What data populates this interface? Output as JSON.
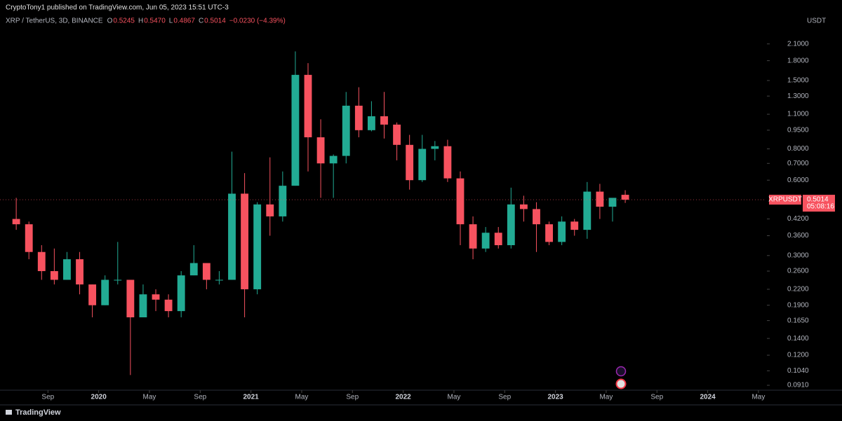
{
  "header": {
    "published": "CryptoTony1 published on TradingView.com, Jun 05, 2023 15:51 UTC-3",
    "ohlc": [
      {
        "key": "O",
        "value": "0.5245"
      },
      {
        "key": "H",
        "value": "0.5470"
      },
      {
        "key": "L",
        "value": "0.4867"
      },
      {
        "key": "C",
        "value": "0.5014"
      }
    ],
    "change": "−0.0230 (−4.39%)"
  },
  "footer": {
    "brand": "TradingView"
  },
  "chart_data": {
    "type": "candlestick",
    "title": "XRP / TetherUS, 3D, BINANCE",
    "currency": "USDT",
    "symbol": "XRPUSDT",
    "countdown": "05:08:16",
    "log_scale": true,
    "up_color": "#22ab94",
    "down_color": "#f7525f",
    "x": [
      "2019-06",
      "2019-07",
      "2019-08",
      "2019-09",
      "2019-10",
      "2019-11",
      "2019-12",
      "2020-01",
      "2020-02",
      "2020-03",
      "2020-04",
      "2020-05",
      "2020-06",
      "2020-07",
      "2020-08",
      "2020-09",
      "2020-10",
      "2020-11",
      "2020-12",
      "2021-01",
      "2021-02",
      "2021-03",
      "2021-04",
      "2021-05",
      "2021-06",
      "2021-07",
      "2021-08",
      "2021-09",
      "2021-10",
      "2021-11",
      "2021-12",
      "2022-01",
      "2022-02",
      "2022-03",
      "2022-04",
      "2022-05",
      "2022-06",
      "2022-07",
      "2022-08",
      "2022-09",
      "2022-10",
      "2022-11",
      "2022-12",
      "2023-01",
      "2023-02",
      "2023-03",
      "2023-04",
      "2023-05",
      "2023-06"
    ],
    "open": [
      0.42,
      0.4,
      0.31,
      0.26,
      0.24,
      0.29,
      0.23,
      0.19,
      0.24,
      0.24,
      0.17,
      0.21,
      0.2,
      0.18,
      0.25,
      0.28,
      0.24,
      0.24,
      0.53,
      0.22,
      0.48,
      0.43,
      0.57,
      1.58,
      0.89,
      0.7,
      0.75,
      1.19,
      0.95,
      1.08,
      1.0,
      0.83,
      0.6,
      0.8,
      0.82,
      0.61,
      0.4,
      0.32,
      0.37,
      0.33,
      0.48,
      0.46,
      0.4,
      0.34,
      0.41,
      0.38,
      0.54,
      0.47,
      0.5245
    ],
    "high": [
      0.51,
      0.41,
      0.33,
      0.32,
      0.31,
      0.31,
      0.23,
      0.25,
      0.34,
      0.24,
      0.23,
      0.22,
      0.21,
      0.26,
      0.33,
      0.28,
      0.26,
      0.78,
      0.64,
      0.49,
      0.74,
      0.65,
      1.96,
      1.76,
      1.05,
      0.76,
      1.35,
      1.41,
      1.24,
      1.35,
      1.02,
      0.91,
      0.91,
      0.86,
      0.87,
      0.65,
      0.43,
      0.39,
      0.39,
      0.56,
      0.52,
      0.49,
      0.41,
      0.43,
      0.42,
      0.59,
      0.58,
      0.49,
      0.547
    ],
    "low": [
      0.38,
      0.29,
      0.24,
      0.23,
      0.24,
      0.21,
      0.17,
      0.19,
      0.23,
      0.1,
      0.17,
      0.18,
      0.17,
      0.17,
      0.25,
      0.22,
      0.23,
      0.24,
      0.17,
      0.21,
      0.36,
      0.41,
      0.57,
      0.65,
      0.51,
      0.51,
      0.7,
      0.89,
      0.94,
      0.88,
      0.72,
      0.55,
      0.59,
      0.72,
      0.59,
      0.33,
      0.29,
      0.31,
      0.32,
      0.32,
      0.41,
      0.31,
      0.33,
      0.33,
      0.36,
      0.35,
      0.42,
      0.41,
      0.4867
    ],
    "close": [
      0.4,
      0.31,
      0.26,
      0.24,
      0.29,
      0.23,
      0.19,
      0.24,
      0.24,
      0.17,
      0.21,
      0.2,
      0.18,
      0.25,
      0.28,
      0.24,
      0.24,
      0.53,
      0.22,
      0.48,
      0.43,
      0.57,
      1.58,
      0.89,
      0.7,
      0.75,
      1.19,
      0.95,
      1.08,
      1.0,
      0.83,
      0.6,
      0.8,
      0.82,
      0.61,
      0.4,
      0.32,
      0.37,
      0.33,
      0.48,
      0.46,
      0.4,
      0.34,
      0.41,
      0.38,
      0.54,
      0.47,
      0.51,
      0.5014
    ],
    "xlim": [
      "2019-05",
      "2024-06"
    ],
    "xticks": [
      {
        "value": "2019-09",
        "label": "Sep"
      },
      {
        "value": "2020-01",
        "label": "2020"
      },
      {
        "value": "2020-05",
        "label": "May"
      },
      {
        "value": "2020-09",
        "label": "Sep"
      },
      {
        "value": "2021-01",
        "label": "2021"
      },
      {
        "value": "2021-05",
        "label": "May"
      },
      {
        "value": "2021-09",
        "label": "Sep"
      },
      {
        "value": "2022-01",
        "label": "2022"
      },
      {
        "value": "2022-05",
        "label": "May"
      },
      {
        "value": "2022-09",
        "label": "Sep"
      },
      {
        "value": "2023-01",
        "label": "2023"
      },
      {
        "value": "2023-05",
        "label": "May"
      },
      {
        "value": "2023-09",
        "label": "Sep"
      },
      {
        "value": "2024-01",
        "label": "2024"
      },
      {
        "value": "2024-05",
        "label": "May"
      }
    ],
    "ylim": [
      0.087,
      2.51
    ],
    "yticks": [
      {
        "value": 2.1,
        "label": "2.1000"
      },
      {
        "value": 1.8,
        "label": "1.8000"
      },
      {
        "value": 1.5,
        "label": "1.5000"
      },
      {
        "value": 1.3,
        "label": "1.3000"
      },
      {
        "value": 1.1,
        "label": "1.1000"
      },
      {
        "value": 0.95,
        "label": "0.9500"
      },
      {
        "value": 0.8,
        "label": "0.8000"
      },
      {
        "value": 0.7,
        "label": "0.7000"
      },
      {
        "value": 0.6,
        "label": "0.6000"
      },
      {
        "value": 0.42,
        "label": "0.4200"
      },
      {
        "value": 0.36,
        "label": "0.3600"
      },
      {
        "value": 0.3,
        "label": "0.3000"
      },
      {
        "value": 0.26,
        "label": "0.2600"
      },
      {
        "value": 0.22,
        "label": "0.2200"
      },
      {
        "value": 0.19,
        "label": "0.1900"
      },
      {
        "value": 0.165,
        "label": "0.1650"
      },
      {
        "value": 0.14,
        "label": "0.1400"
      },
      {
        "value": 0.12,
        "label": "0.1200"
      },
      {
        "value": 0.104,
        "label": "0.1040"
      },
      {
        "value": 0.091,
        "label": "0.0910"
      }
    ]
  }
}
